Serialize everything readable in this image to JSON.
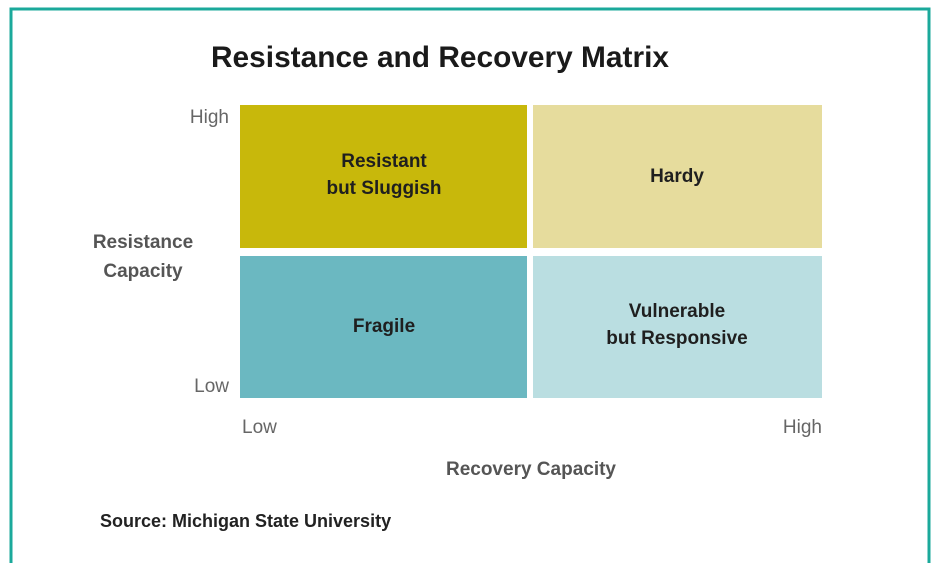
{
  "title": "Resistance and Recovery Matrix",
  "y_axis": {
    "label": [
      "Resistance",
      "Capacity"
    ],
    "high": "High",
    "low": "Low"
  },
  "x_axis": {
    "label": "Recovery Capacity",
    "low": "Low",
    "high": "High"
  },
  "quadrants": [
    {
      "label": [
        "Resistant",
        "but Sluggish"
      ]
    },
    {
      "label": [
        "Hardy"
      ]
    },
    {
      "label": [
        "Fragile"
      ]
    },
    {
      "label": [
        "Vulnerable",
        "but Responsive"
      ]
    }
  ],
  "source": "Source: Michigan State University"
}
